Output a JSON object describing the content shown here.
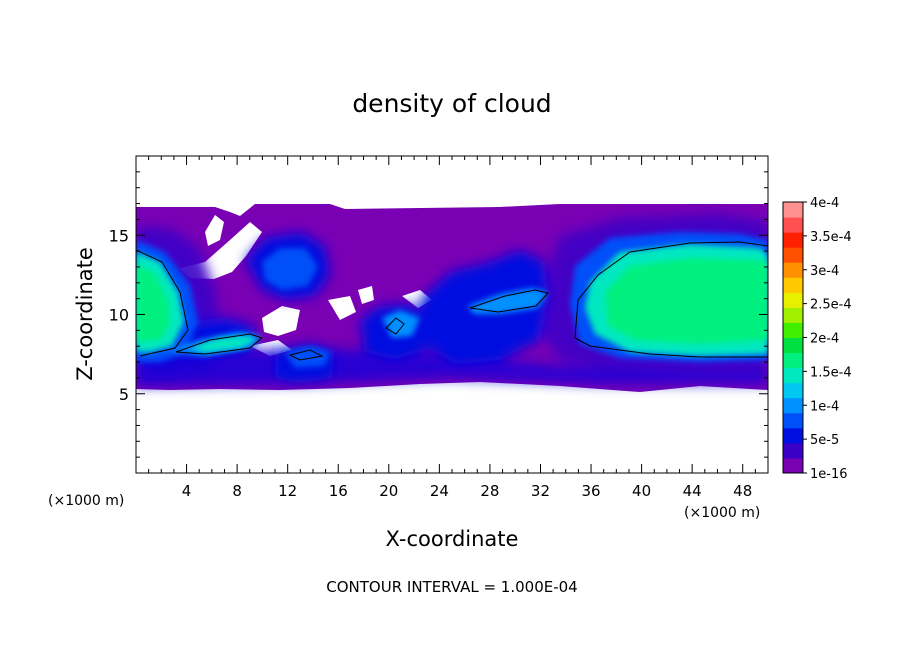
{
  "chart_data": {
    "type": "heatmap",
    "title": "density of cloud",
    "xlabel": "X-coordinate",
    "ylabel": "Z-coordinate",
    "x_unit_label_left": "(×1000 m)",
    "x_unit_label_right": "(×1000 m)",
    "footer": "CONTOUR INTERVAL = 1.000E-04",
    "xlim": [
      0,
      50
    ],
    "ylim": [
      0,
      20
    ],
    "x_ticks": [
      4,
      8,
      12,
      16,
      20,
      24,
      28,
      32,
      36,
      40,
      44,
      48
    ],
    "y_ticks": [
      5,
      10,
      15
    ],
    "colorbar": {
      "labels": [
        "1e-16",
        "5e-5",
        "1e-4",
        "1.5e-4",
        "2e-4",
        "2.5e-4",
        "3e-4",
        "3.5e-4",
        "4e-4"
      ],
      "colors": [
        "#7a00b4",
        "#3a00c8",
        "#0010e0",
        "#0050f8",
        "#0090ff",
        "#00c8f0",
        "#00e8c0",
        "#00f080",
        "#00e040",
        "#40f000",
        "#a0f000",
        "#e8f000",
        "#ffc800",
        "#ff9000",
        "#ff5000",
        "#ff2000",
        "#ff5050",
        "#ff9090"
      ]
    },
    "features": [
      {
        "name": "left-core",
        "x": 0,
        "z": 11.5,
        "peak": 0.00019
      },
      {
        "name": "right-core",
        "x": 43,
        "z": 11,
        "peak": 0.00019
      },
      {
        "name": "mid-cell",
        "x": 13,
        "z": 12.5,
        "peak": 0.00012
      },
      {
        "name": "streak-8",
        "x": 7,
        "z": 8.5,
        "peak": 0.00014
      },
      {
        "name": "streak-28",
        "x": 29.5,
        "z": 10.5,
        "peak": 0.00014
      },
      {
        "name": "blob-14",
        "x": 13.5,
        "z": 7.6,
        "peak": 0.00011
      },
      {
        "name": "blob-20",
        "x": 20.5,
        "z": 9.6,
        "peak": 0.00012
      }
    ]
  }
}
